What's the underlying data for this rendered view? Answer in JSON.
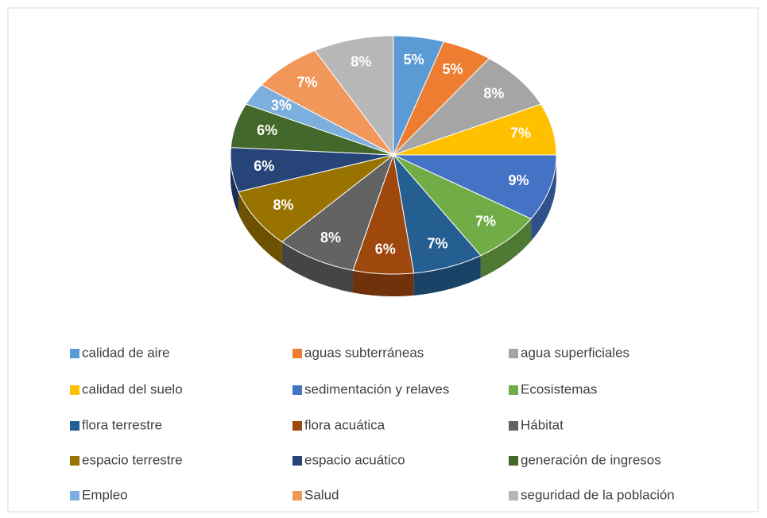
{
  "chart_data": {
    "type": "pie",
    "view": "3d",
    "categories": [
      "calidad de aire",
      "aguas subterráneas",
      "agua superficiales",
      "calidad del suelo",
      "sedimentación y relaves",
      "Ecosistemas",
      "flora terrestre",
      "flora acuática",
      "Hábitat",
      "espacio terrestre",
      "espacio acuático",
      "generación de ingresos",
      "Empleo",
      "Salud",
      "seguridad de la población"
    ],
    "values": [
      5,
      5,
      8,
      7,
      9,
      7,
      7,
      6,
      8,
      8,
      6,
      6,
      3,
      7,
      8
    ],
    "value_labels": [
      "5%",
      "5%",
      "8%",
      "7%",
      "9%",
      "7%",
      "7%",
      "6%",
      "8%",
      "8%",
      "6%",
      "6%",
      "3%",
      "7%",
      "8%"
    ],
    "colors": [
      "#5b9bd5",
      "#ed7d31",
      "#a5a5a5",
      "#ffc000",
      "#4472c4",
      "#70ad47",
      "#255e91",
      "#9e480e",
      "#636363",
      "#997300",
      "#264478",
      "#43682b",
      "#7cafdd",
      "#f1975a",
      "#b7b7b7"
    ],
    "legend": "bottom"
  }
}
